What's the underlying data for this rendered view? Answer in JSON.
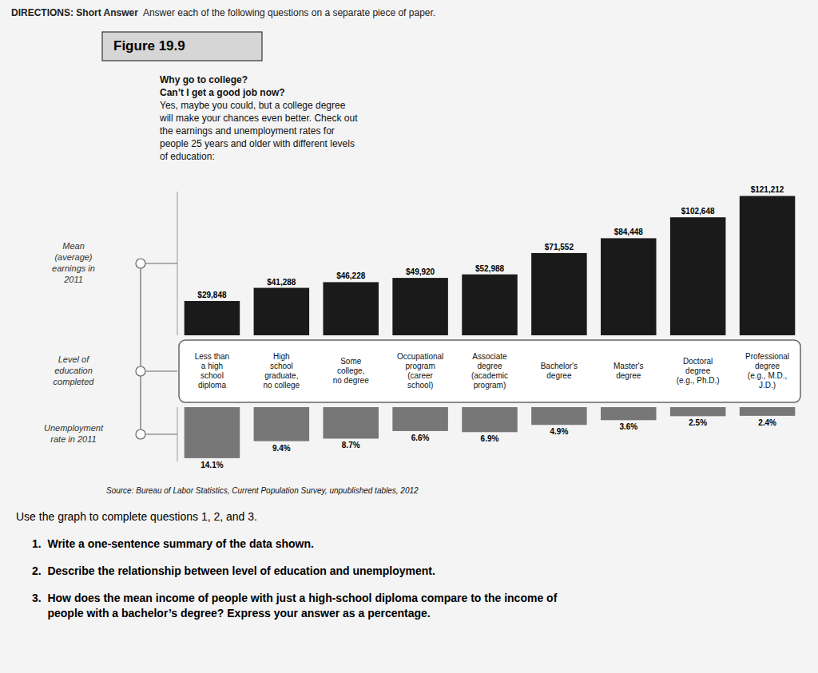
{
  "chart_data": [
    {
      "type": "bar",
      "title": "Figure 19.9",
      "categories": [
        "Less than\na high\nschool\ndiploma",
        "High\nschool\ngraduate,\nno college",
        "Some\ncollege,\nno degree",
        "Occupational\nprogram\n(career\nschool)",
        "Associate\ndegree\n(academic\nprogram)",
        "Bachelor's\ndegree",
        "Master's\ndegree",
        "Doctoral\ndegree\n(e.g., Ph.D.)",
        "Professional\ndegree\n(e.g., M.D.,\nJ.D.)"
      ],
      "xlabel": "Level of\neducation\ncompleted",
      "ylabel": "Mean\n(average)\nearnings in\n2011",
      "values": [
        29848,
        41288,
        46228,
        49920,
        52988,
        71552,
        84448,
        102648,
        121212
      ],
      "value_labels": [
        "$29,848",
        "$41,288",
        "$46,228",
        "$49,920",
        "$52,988",
        "$71,552",
        "$84,448",
        "$102,648",
        "$121,212"
      ],
      "color": "#1a1a1a",
      "ylim": [
        0,
        125000
      ],
      "tick_labels": false,
      "data_labels": true
    },
    {
      "type": "bar",
      "ylabel": "Unemployment\nrate in 2011",
      "values": [
        14.1,
        9.4,
        8.7,
        6.6,
        6.9,
        4.9,
        3.6,
        2.5,
        2.4
      ],
      "value_labels": [
        "14.1%",
        "9.4%",
        "8.7%",
        "6.6%",
        "6.9%",
        "4.9%",
        "3.6%",
        "2.5%",
        "2.4%"
      ],
      "color": "#777777",
      "ylim": [
        15,
        0
      ],
      "tick_labels": false,
      "data_labels": true
    }
  ],
  "page_text": {
    "directions_bold": "DIRECTIONS: Short Answer",
    "directions_normal": "  Answer each of the following questions on a separate piece of paper.",
    "subtitle_lines": [
      "Why go to college?",
      "Can’t I get a good job now?",
      "Yes, maybe you could, but a college degree",
      "will make your chances even better. Check out",
      "the earnings and unemployment rates for",
      "people 25 years and older with different levels",
      "of education:"
    ],
    "source": "Source: Bureau of Labor Statistics, Current Population Survey, unpublished tables, 2012",
    "questions": [
      "Use the graph to complete questions 1, 2, and 3.",
      "1.  Write a one-sentence summary of the data shown.",
      "2.  Describe the relationship between level of education and unemployment.",
      "3.  How does the mean income of people with just a high-school diploma compare to the income of\n     people with a bachelor’s degree? Express your answer as a percentage."
    ]
  }
}
